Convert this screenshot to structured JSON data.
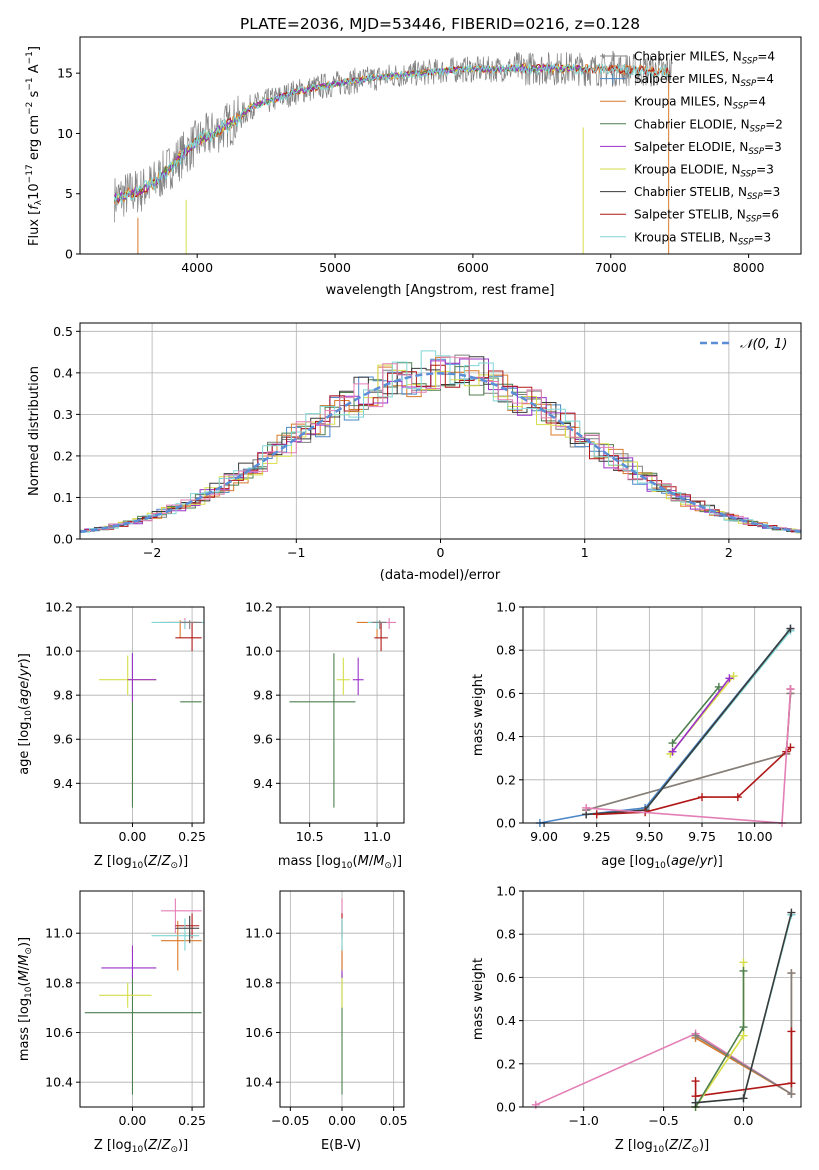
{
  "colors": {
    "chabrier_miles": "#808080",
    "salpeter_miles": "#4a86c8",
    "kroupa_miles": "#d97a2a",
    "chabrier_elodie": "#4e7f4e",
    "salpeter_elodie": "#9b30c8",
    "kroupa_elodie": "#d6de4a",
    "chabrier_stelib": "#3a3a3a",
    "salpeter_stelib": "#b01818",
    "kroupa_stelib": "#7fd6d6",
    "kroupa_pink": "#e37fb6",
    "normal_curve": "#5b8ed6",
    "grid": "#b0b0b0"
  },
  "chart_data": [
    {
      "id": "spectrum",
      "type": "line",
      "title": "PLATE=2036, MJD=53446, FIBERID=0216, z=0.128",
      "xlabel": "wavelength [Angstrom, rest frame]",
      "ylabel": "Flux [f_λ10⁻¹⁷ erg cm⁻² s⁻¹ A⁻¹]",
      "xlim": [
        3150,
        8380
      ],
      "ylim": [
        0,
        18
      ],
      "xticks": [
        4000,
        5000,
        6000,
        7000,
        8000
      ],
      "yticks": [
        0,
        5,
        10,
        15
      ],
      "grid": false,
      "legend_position": "top-right",
      "legend": [
        "Chabrier MILES, N_SSP=4",
        "Salpeter MILES, N_SSP=4",
        "Kroupa MILES, N_SSP=4",
        "Chabrier ELODIE, N_SSP=2",
        "Salpeter ELODIE, N_SSP=3",
        "Kroupa ELODIE, N_SSP=3",
        "Chabrier STELIB, N_SSP=3",
        "Salpeter STELIB, N_SSP=6",
        "Kroupa STELIB, N_SSP=3"
      ],
      "legend_markers": [
        "+",
        "+",
        "",
        "",
        "",
        "",
        "",
        "",
        ""
      ],
      "continuum": {
        "x": [
          3400,
          3500,
          3600,
          3700,
          3800,
          3900,
          4000,
          4100,
          4200,
          4300,
          4400,
          4500,
          4700,
          4900,
          5100,
          5300,
          5500,
          5700,
          5900,
          6100,
          6300,
          6500,
          6700,
          6900,
          7100,
          7300,
          7400
        ],
        "y": [
          4.6,
          5.0,
          5.3,
          6.0,
          7.2,
          8.3,
          9.3,
          9.9,
          10.6,
          11.2,
          12.3,
          12.6,
          13.4,
          13.9,
          14.3,
          14.6,
          14.9,
          15.1,
          15.3,
          15.3,
          15.4,
          15.4,
          15.4,
          15.3,
          15.3,
          15.2,
          15.2
        ]
      }
    },
    {
      "id": "residuals",
      "type": "line",
      "xlabel": "(data-model)/error",
      "ylabel": "Normed distribution",
      "xlim": [
        -2.5,
        2.5
      ],
      "ylim": [
        0,
        0.52
      ],
      "xticks": [
        -2,
        -1,
        0,
        1,
        2
      ],
      "yticks": [
        0.0,
        0.1,
        0.2,
        0.3,
        0.4,
        0.5
      ],
      "grid": true,
      "legend_position": "top-right",
      "legend": [
        "𝒩(0, 1)"
      ]
    },
    {
      "id": "age_vs_Z",
      "type": "scatter",
      "xlabel": "Z [log₁₀(Z/Z⊙)]",
      "ylabel": "age  [log₁₀(age/yr)]",
      "xlim": [
        -0.22,
        0.3
      ],
      "ylim": [
        9.22,
        10.2
      ],
      "xticks": [
        0.0,
        0.25
      ],
      "yticks": [
        9.4,
        9.6,
        9.8,
        10.0,
        10.2
      ],
      "grid": true,
      "points": [
        {
          "c": "chabrier_elodie",
          "x": 0.0,
          "y": 9.77,
          "xe": [
            0.2,
            0.29
          ],
          "ye": [
            9.29,
            9.99
          ]
        },
        {
          "c": "kroupa_elodie",
          "x": -0.02,
          "y": 9.87,
          "xe": [
            -0.14,
            0.1
          ],
          "ye": [
            9.8,
            9.98
          ]
        },
        {
          "c": "salpeter_elodie",
          "x": 0.0,
          "y": 9.87,
          "xe": [
            -0.02,
            0.1
          ],
          "ye": [
            9.77,
            9.99
          ]
        },
        {
          "c": "kroupa_miles",
          "x": 0.2,
          "y": 10.13,
          "xe": [
            0.12,
            0.27
          ],
          "ye": [
            10.06,
            10.14
          ]
        },
        {
          "c": "kroupa_pink",
          "x": 0.22,
          "y": 10.13,
          "xe": [
            0.15,
            0.28
          ],
          "ye": [
            10.1,
            10.15
          ]
        },
        {
          "c": "salpeter_stelib",
          "x": 0.25,
          "y": 10.06,
          "xe": [
            0.18,
            0.29
          ],
          "ye": [
            10.0,
            10.13
          ]
        },
        {
          "c": "kroupa_stelib",
          "x": 0.22,
          "y": 10.13,
          "xe": [
            0.08,
            0.3
          ],
          "ye": [
            10.1,
            10.14
          ]
        },
        {
          "c": "chabrier_miles",
          "x": 0.24,
          "y": 10.13,
          "xe": [
            0.2,
            0.29
          ],
          "ye": [
            10.1,
            10.14
          ]
        }
      ]
    },
    {
      "id": "age_vs_mass",
      "type": "scatter",
      "xlabel": "mass [log₁₀(M/M⊙)]",
      "ylabel": "",
      "xlim": [
        10.28,
        11.2
      ],
      "ylim": [
        9.22,
        10.2
      ],
      "xticks": [
        10.5,
        11.0
      ],
      "yticks": [
        9.4,
        9.6,
        9.8,
        10.0,
        10.2
      ],
      "grid": true,
      "points": [
        {
          "c": "chabrier_elodie",
          "x": 10.68,
          "y": 9.77,
          "xe": [
            10.35,
            10.84
          ],
          "ye": [
            9.29,
            9.99
          ]
        },
        {
          "c": "kroupa_elodie",
          "x": 10.75,
          "y": 9.87,
          "xe": [
            10.7,
            10.8
          ],
          "ye": [
            9.8,
            9.97
          ]
        },
        {
          "c": "salpeter_elodie",
          "x": 10.86,
          "y": 9.87,
          "xe": [
            10.82,
            10.9
          ],
          "ye": [
            9.8,
            9.97
          ]
        },
        {
          "c": "kroupa_miles",
          "x": 11.0,
          "y": 10.13,
          "xe": [
            10.85,
            11.06
          ],
          "ye": [
            10.06,
            10.14
          ]
        },
        {
          "c": "kroupa_pink",
          "x": 11.09,
          "y": 10.13,
          "xe": [
            11.0,
            11.14
          ],
          "ye": [
            10.1,
            10.15
          ]
        },
        {
          "c": "salpeter_stelib",
          "x": 11.03,
          "y": 10.06,
          "xe": [
            10.98,
            11.08
          ],
          "ye": [
            10.0,
            10.13
          ]
        },
        {
          "c": "kroupa_stelib",
          "x": 11.0,
          "y": 10.13,
          "xe": [
            10.93,
            11.06
          ],
          "ye": [
            10.1,
            10.14
          ]
        },
        {
          "c": "chabrier_miles",
          "x": 11.02,
          "y": 10.13,
          "xe": [
            10.96,
            11.07
          ],
          "ye": [
            10.1,
            10.14
          ]
        }
      ]
    },
    {
      "id": "mass_weight_vs_age",
      "type": "line",
      "xlabel": "age  [log₁₀(age/yr)]",
      "ylabel": "mass weight",
      "xlim": [
        8.9,
        10.22
      ],
      "ylim": [
        0,
        1
      ],
      "xticks": [
        9.0,
        9.25,
        9.5,
        9.75,
        10.0
      ],
      "yticks": [
        0.0,
        0.2,
        0.4,
        0.6,
        0.8,
        1.0
      ],
      "grid": true,
      "series": [
        {
          "c": "chabrier_elodie",
          "x": [
            9.61,
            9.83
          ],
          "y": [
            0.37,
            0.63
          ]
        },
        {
          "c": "kroupa_elodie",
          "x": [
            9.6,
            9.9
          ],
          "y": [
            0.32,
            0.68
          ]
        },
        {
          "c": "salpeter_elodie",
          "x": [
            9.61,
            9.88
          ],
          "y": [
            0.33,
            0.67
          ]
        },
        {
          "c": "kroupa_miles",
          "x": [
            9.2,
            10.15,
            10.17,
            10.17
          ],
          "y": [
            0.06,
            0.32,
            0.6,
            0.62
          ]
        },
        {
          "c": "chabrier_miles",
          "x": [
            9.2,
            10.15,
            10.17,
            10.17
          ],
          "y": [
            0.06,
            0.32,
            0.6,
            0.62
          ]
        },
        {
          "c": "salpeter_miles",
          "x": [
            8.98,
            9.2,
            9.48,
            10.17
          ],
          "y": [
            0.0,
            0.04,
            0.07,
            0.9
          ]
        },
        {
          "c": "kroupa_stelib",
          "x": [
            9.2,
            9.48,
            10.17
          ],
          "y": [
            0.04,
            0.06,
            0.89
          ]
        },
        {
          "c": "chabrier_stelib",
          "x": [
            9.2,
            9.48,
            10.17
          ],
          "y": [
            0.04,
            0.06,
            0.9
          ]
        },
        {
          "c": "salpeter_stelib",
          "x": [
            9.25,
            9.48,
            9.75,
            9.92,
            10.15,
            10.17
          ],
          "y": [
            0.04,
            0.05,
            0.12,
            0.12,
            0.33,
            0.35
          ]
        },
        {
          "c": "kroupa_pink",
          "x": [
            9.2,
            10.13,
            10.17,
            10.17
          ],
          "y": [
            0.07,
            0.0,
            0.62,
            0.62
          ]
        }
      ]
    },
    {
      "id": "mass_vs_Z",
      "type": "scatter",
      "xlabel": "Z [log₁₀(Z/Z⊙)]",
      "ylabel": "mass [log₁₀(M/M⊙)]",
      "xlim": [
        -0.22,
        0.3
      ],
      "ylim": [
        10.3,
        11.17
      ],
      "xticks": [
        0.0,
        0.25
      ],
      "yticks": [
        10.4,
        10.6,
        10.8,
        11.0
      ],
      "grid": true,
      "points": [
        {
          "c": "chabrier_elodie",
          "x": 0.0,
          "y": 10.68,
          "xe": [
            -0.2,
            0.29
          ],
          "ye": [
            10.35,
            10.84
          ]
        },
        {
          "c": "kroupa_elodie",
          "x": -0.02,
          "y": 10.75,
          "xe": [
            -0.14,
            0.08
          ],
          "ye": [
            10.7,
            10.8
          ]
        },
        {
          "c": "salpeter_elodie",
          "x": 0.0,
          "y": 10.86,
          "xe": [
            -0.13,
            0.1
          ],
          "ye": [
            10.82,
            10.95
          ]
        },
        {
          "c": "kroupa_miles",
          "x": 0.19,
          "y": 10.97,
          "xe": [
            0.12,
            0.29
          ],
          "ye": [
            10.85,
            11.05
          ]
        },
        {
          "c": "kroupa_pink",
          "x": 0.18,
          "y": 11.09,
          "xe": [
            0.12,
            0.29
          ],
          "ye": [
            11.0,
            11.14
          ]
        },
        {
          "c": "salpeter_stelib",
          "x": 0.25,
          "y": 11.03,
          "xe": [
            0.18,
            0.28
          ],
          "ye": [
            10.98,
            11.08
          ]
        },
        {
          "c": "kroupa_stelib",
          "x": 0.22,
          "y": 10.99,
          "xe": [
            0.08,
            0.28
          ],
          "ye": [
            10.93,
            11.06
          ]
        },
        {
          "c": "chabrier_stelib",
          "x": 0.24,
          "y": 11.02,
          "xe": [
            0.18,
            0.28
          ],
          "ye": [
            10.96,
            11.07
          ]
        }
      ]
    },
    {
      "id": "mass_vs_ebv",
      "type": "scatter",
      "xlabel": "E(B-V)",
      "ylabel": "",
      "xlim": [
        -0.06,
        0.06
      ],
      "ylim": [
        10.3,
        11.17
      ],
      "xticks": [
        -0.05,
        0.0,
        0.05
      ],
      "yticks": [
        10.4,
        10.6,
        10.8,
        11.0
      ],
      "grid": true,
      "points": [
        {
          "c": "chabrier_elodie",
          "x": 0.0,
          "y": 10.68,
          "xe": [
            0.0,
            0.0
          ],
          "ye": [
            10.35,
            10.84
          ]
        },
        {
          "c": "kroupa_elodie",
          "x": 0.0,
          "y": 10.75,
          "xe": [
            0.0,
            0.0
          ],
          "ye": [
            10.7,
            10.85
          ]
        },
        {
          "c": "salpeter_elodie",
          "x": 0.0,
          "y": 10.86,
          "xe": [
            0.0,
            0.0
          ],
          "ye": [
            10.82,
            10.95
          ]
        },
        {
          "c": "kroupa_miles",
          "x": 0.0,
          "y": 10.97,
          "xe": [
            0.0,
            0.0
          ],
          "ye": [
            10.85,
            11.05
          ]
        },
        {
          "c": "kroupa_pink",
          "x": 0.0,
          "y": 11.09,
          "xe": [
            0.0,
            0.0
          ],
          "ye": [
            11.0,
            11.14
          ]
        },
        {
          "c": "salpeter_stelib",
          "x": 0.0,
          "y": 11.03,
          "xe": [
            0.0,
            0.0
          ],
          "ye": [
            10.98,
            11.08
          ]
        },
        {
          "c": "kroupa_stelib",
          "x": 0.0,
          "y": 10.99,
          "xe": [
            0.0,
            0.0
          ],
          "ye": [
            10.93,
            11.06
          ]
        }
      ]
    },
    {
      "id": "mass_weight_vs_Z",
      "type": "line",
      "xlabel": "Z [log₁₀(Z/Z⊙)]",
      "ylabel": "mass weight",
      "xlim": [
        -1.38,
        0.36
      ],
      "ylim": [
        0,
        1
      ],
      "xticks": [
        -1.0,
        -0.5,
        0.0
      ],
      "yticks": [
        0.0,
        0.2,
        0.4,
        0.6,
        0.8,
        1.0
      ],
      "grid": true,
      "series": [
        {
          "c": "kroupa_pink",
          "x": [
            -1.3,
            -0.3,
            0.3
          ],
          "y": [
            0.01,
            0.34,
            0.06
          ]
        },
        {
          "c": "kroupa_miles",
          "x": [
            -0.3,
            0.3,
            0.3
          ],
          "y": [
            0.32,
            0.06,
            0.62
          ]
        },
        {
          "c": "chabrier_miles",
          "x": [
            -0.3,
            0.3,
            0.3
          ],
          "y": [
            0.33,
            0.06,
            0.62
          ]
        },
        {
          "c": "salpeter_stelib",
          "x": [
            -0.3,
            -0.3,
            0.3,
            0.3
          ],
          "y": [
            0.12,
            0.05,
            0.11,
            0.35
          ]
        },
        {
          "c": "kroupa_elodie",
          "x": [
            -0.3,
            0.0,
            0.0
          ],
          "y": [
            0.0,
            0.33,
            0.67
          ]
        },
        {
          "c": "chabrier_elodie",
          "x": [
            -0.3,
            0.0,
            0.0
          ],
          "y": [
            0.0,
            0.37,
            0.63
          ]
        },
        {
          "c": "kroupa_stelib",
          "x": [
            -0.3,
            0.0,
            0.3
          ],
          "y": [
            0.02,
            0.04,
            0.89
          ]
        },
        {
          "c": "chabrier_stelib",
          "x": [
            -0.3,
            0.0,
            0.3
          ],
          "y": [
            0.02,
            0.04,
            0.9
          ]
        }
      ]
    }
  ]
}
